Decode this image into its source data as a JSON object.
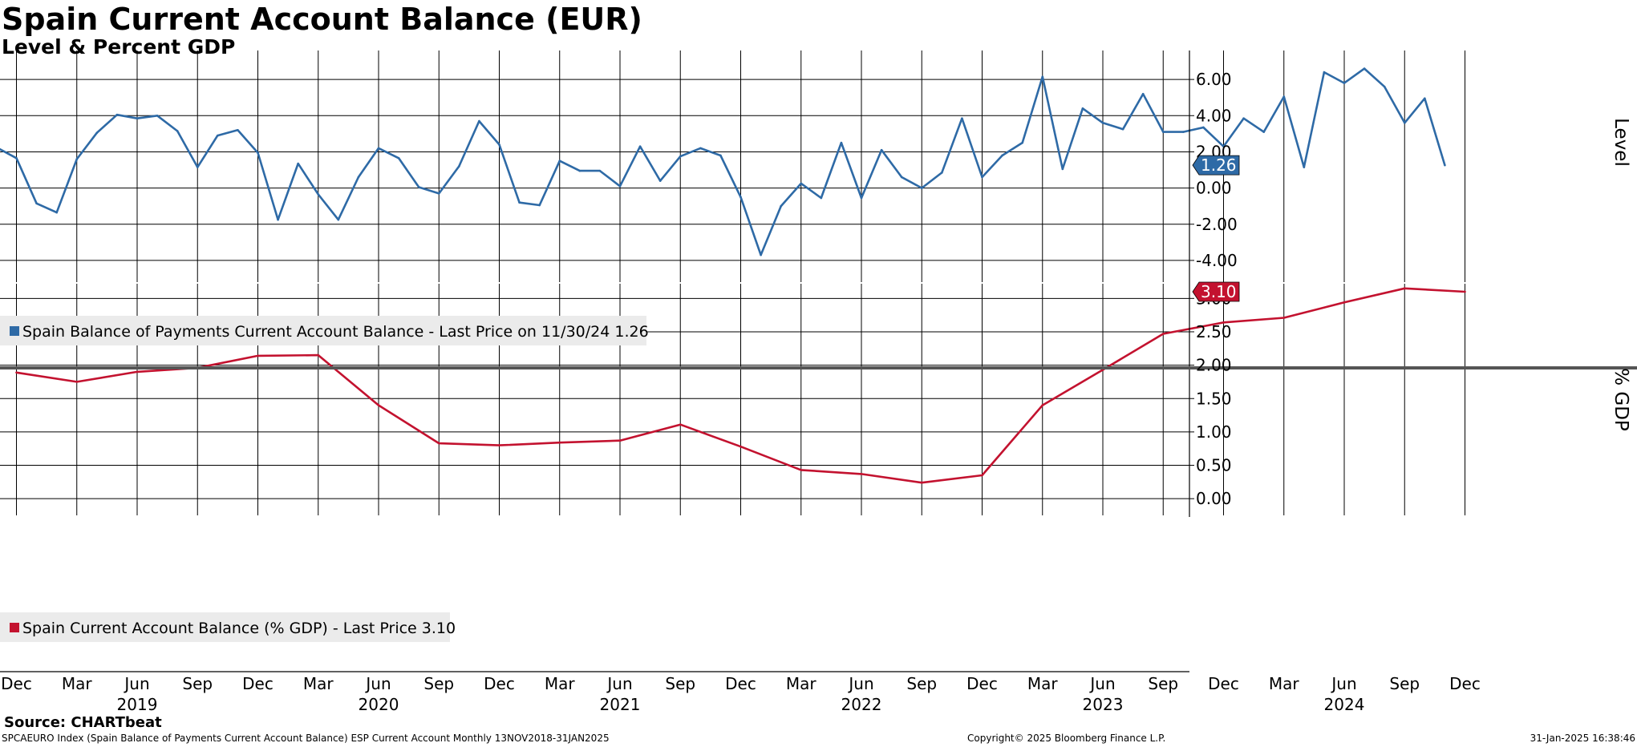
{
  "title": "Spain Current Account Balance (EUR)",
  "subtitle": "Level & Percent GDP",
  "colors": {
    "level": "#2e6aa6",
    "gdp": "#c3122f",
    "grid": "#000000"
  },
  "chart_data": [
    {
      "type": "line",
      "name": "top-panel",
      "ylabel": "Level",
      "ylim": [
        -5.2,
        7.6
      ],
      "yticks": [
        6,
        4,
        2,
        0,
        -2,
        -4
      ],
      "ytick_labels": [
        "6.00",
        "4.00",
        "2.00",
        "0.00",
        "-2.00",
        "-4.00"
      ],
      "last_value_label": "1.26",
      "legend": "Spain Balance of Payments Current Account Balance - Last Price on 11/30/24 1.26",
      "series": [
        {
          "x": [
            "2018-11",
            "2018-12",
            "2019-01",
            "2019-02",
            "2019-03",
            "2019-04",
            "2019-05",
            "2019-06",
            "2019-07",
            "2019-08",
            "2019-09",
            "2019-10",
            "2019-11",
            "2019-12",
            "2020-01",
            "2020-02",
            "2020-03",
            "2020-04",
            "2020-05",
            "2020-06",
            "2020-07",
            "2020-08",
            "2020-09",
            "2020-10",
            "2020-11",
            "2020-12",
            "2021-01",
            "2021-02",
            "2021-03",
            "2021-04",
            "2021-05",
            "2021-06",
            "2021-07",
            "2021-08",
            "2021-09",
            "2021-10",
            "2021-11",
            "2021-12",
            "2022-01",
            "2022-02",
            "2022-03",
            "2022-04",
            "2022-05",
            "2022-06",
            "2022-07",
            "2022-08",
            "2022-09",
            "2022-10",
            "2022-11",
            "2022-12",
            "2023-01",
            "2023-02",
            "2023-03",
            "2023-04",
            "2023-05",
            "2023-06",
            "2023-07",
            "2023-08",
            "2023-09",
            "2023-10",
            "2023-11",
            "2023-12",
            "2024-01",
            "2024-02",
            "2024-03",
            "2024-04",
            "2024-05",
            "2024-06",
            "2024-07",
            "2024-08",
            "2024-09",
            "2024-10",
            "2024-11"
          ],
          "values": [
            2.25,
            1.65,
            -0.85,
            -1.35,
            1.6,
            3.05,
            4.05,
            3.85,
            4.0,
            3.15,
            1.15,
            2.9,
            3.2,
            1.95,
            -1.75,
            1.35,
            -0.35,
            -1.75,
            0.6,
            2.2,
            1.65,
            0.05,
            -0.3,
            1.2,
            3.7,
            2.4,
            -0.8,
            -0.95,
            1.5,
            0.95,
            0.95,
            0.1,
            2.3,
            0.4,
            1.75,
            2.2,
            1.8,
            -0.5,
            -3.7,
            -1.0,
            0.25,
            -0.55,
            2.5,
            -0.55,
            2.1,
            0.6,
            0.0,
            0.85,
            3.85,
            0.6,
            1.8,
            2.5,
            6.15,
            1.05,
            4.4,
            3.6,
            3.25,
            5.2,
            3.1,
            3.1,
            3.35,
            2.3,
            3.85,
            3.1,
            5.05,
            1.15,
            6.4,
            5.8,
            6.6,
            5.6,
            3.6,
            4.95,
            1.26
          ]
        }
      ]
    },
    {
      "type": "line",
      "name": "bottom-panel",
      "ylabel": "% GDP",
      "ylim": [
        -0.25,
        3.22
      ],
      "yticks": [
        3.0,
        2.5,
        2.0,
        1.5,
        1.0,
        0.5,
        0.0
      ],
      "ytick_labels": [
        "3.00",
        "2.50",
        "2.00",
        "1.50",
        "1.00",
        "0.50",
        "0.00"
      ],
      "last_value_label": "3.10",
      "legend": "Spain Current Account Balance (% GDP) - Last Price 3.10",
      "series": [
        {
          "x": [
            "2018-12",
            "2019-03",
            "2019-06",
            "2019-09",
            "2019-12",
            "2020-03",
            "2020-06",
            "2020-09",
            "2020-12",
            "2021-03",
            "2021-06",
            "2021-09",
            "2021-12",
            "2022-03",
            "2022-06",
            "2022-09",
            "2022-12",
            "2023-03",
            "2023-06",
            "2023-09",
            "2023-12",
            "2024-03",
            "2024-06",
            "2024-09",
            "2024-12"
          ],
          "values": [
            1.89,
            1.75,
            1.9,
            1.96,
            2.14,
            2.15,
            1.4,
            0.83,
            0.8,
            0.84,
            0.87,
            1.11,
            0.78,
            0.43,
            0.37,
            0.24,
            0.35,
            1.4,
            1.93,
            2.47,
            2.64,
            2.71,
            2.94,
            3.15,
            3.1
          ]
        }
      ]
    }
  ],
  "x_axis": {
    "months": [
      "Dec",
      "Mar",
      "Jun",
      "Sep",
      "Dec",
      "Mar",
      "Jun",
      "Sep",
      "Dec",
      "Mar",
      "Jun",
      "Sep",
      "Dec",
      "Mar",
      "Jun",
      "Sep",
      "Dec",
      "Mar",
      "Jun",
      "Sep",
      "Dec",
      "Mar",
      "Jun",
      "Sep",
      "Dec"
    ],
    "years": [
      "2019",
      "2020",
      "2021",
      "2022",
      "2023",
      "2024"
    ]
  },
  "source": "Source: CHARTbeat",
  "footer": {
    "index": "SPCAEURO Index (Spain Balance of Payments Current Account Balance) ESP Current Account  Monthly 13NOV2018-31JAN2025",
    "copyright": "Copyright© 2025 Bloomberg Finance L.P.",
    "timestamp": "31-Jan-2025 16:38:46"
  }
}
